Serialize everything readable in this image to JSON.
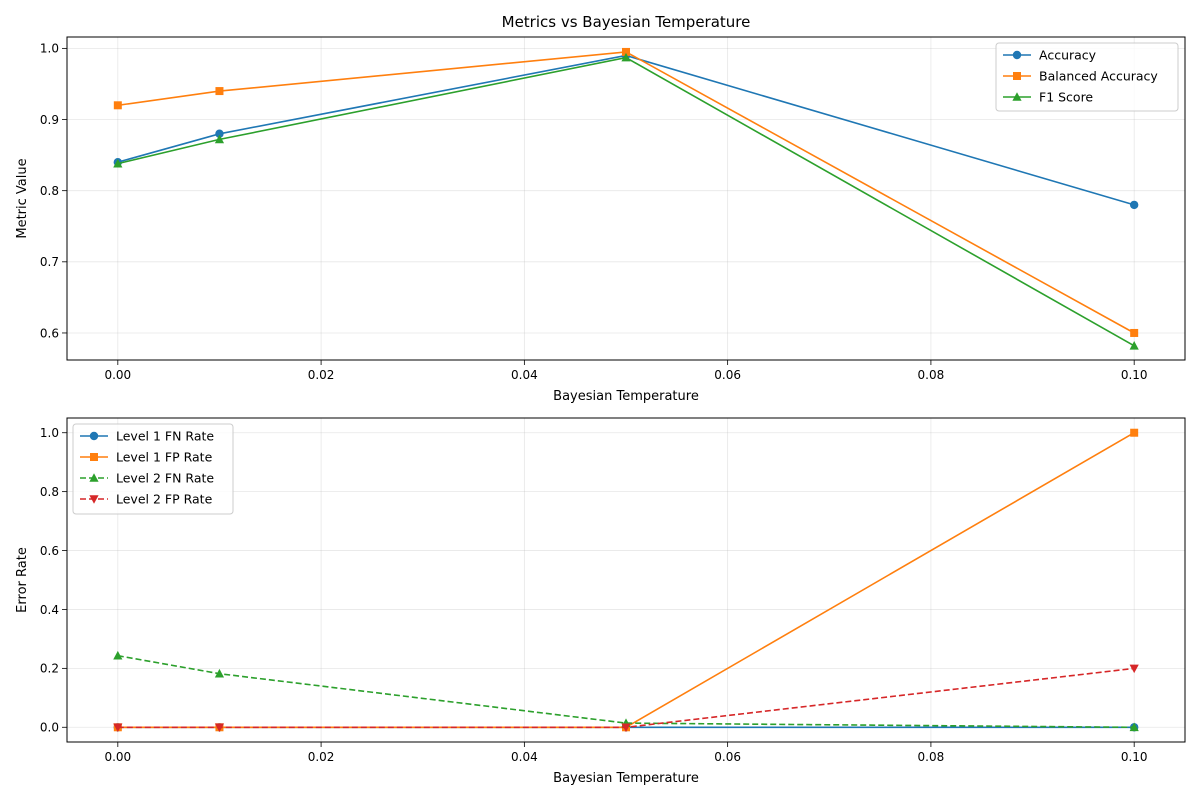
{
  "chart_data": [
    {
      "type": "line",
      "title": "Metrics vs Bayesian Temperature",
      "xlabel": "Bayesian Temperature",
      "ylabel": "Metric Value",
      "x": [
        0.0,
        0.01,
        0.05,
        0.1
      ],
      "xlim": [
        -0.005,
        0.105
      ],
      "ylim": [
        0.562,
        1.016
      ],
      "xticks": [
        0.0,
        0.02,
        0.04,
        0.06,
        0.08,
        0.1
      ],
      "xtick_labels": [
        "0.00",
        "0.02",
        "0.04",
        "0.06",
        "0.08",
        "0.10"
      ],
      "yticks": [
        0.6,
        0.7,
        0.8,
        0.9,
        1.0
      ],
      "ytick_labels": [
        "0.6",
        "0.7",
        "0.8",
        "0.9",
        "1.0"
      ],
      "grid": true,
      "legend_position": "top-right",
      "series": [
        {
          "name": "Accuracy",
          "values": [
            0.84,
            0.88,
            0.99,
            0.78
          ],
          "color": "#1f77b4",
          "marker": "circle",
          "dashed": false
        },
        {
          "name": "Balanced Accuracy",
          "values": [
            0.92,
            0.94,
            0.995,
            0.6
          ],
          "color": "#ff7f0e",
          "marker": "square",
          "dashed": false
        },
        {
          "name": "F1 Score",
          "values": [
            0.838,
            0.872,
            0.987,
            0.582
          ],
          "color": "#2ca02c",
          "marker": "triangle-up",
          "dashed": false
        }
      ]
    },
    {
      "type": "line",
      "title": "",
      "xlabel": "Bayesian Temperature",
      "ylabel": "Error Rate",
      "x": [
        0.0,
        0.01,
        0.05,
        0.1
      ],
      "xlim": [
        -0.005,
        0.105
      ],
      "ylim": [
        -0.05,
        1.05
      ],
      "xticks": [
        0.0,
        0.02,
        0.04,
        0.06,
        0.08,
        0.1
      ],
      "xtick_labels": [
        "0.00",
        "0.02",
        "0.04",
        "0.06",
        "0.08",
        "0.10"
      ],
      "yticks": [
        0.0,
        0.2,
        0.4,
        0.6,
        0.8,
        1.0
      ],
      "ytick_labels": [
        "0.0",
        "0.2",
        "0.4",
        "0.6",
        "0.8",
        "1.0"
      ],
      "grid": true,
      "legend_position": "top-left",
      "series": [
        {
          "name": "Level 1 FN Rate",
          "values": [
            0.0,
            0.0,
            0.0,
            0.0
          ],
          "color": "#1f77b4",
          "marker": "circle",
          "dashed": false
        },
        {
          "name": "Level 1 FP Rate",
          "values": [
            0.0,
            0.0,
            0.0,
            1.0
          ],
          "color": "#ff7f0e",
          "marker": "square",
          "dashed": false
        },
        {
          "name": "Level 2 FN Rate",
          "values": [
            0.243,
            0.182,
            0.014,
            0.0
          ],
          "color": "#2ca02c",
          "marker": "triangle-up",
          "dashed": true
        },
        {
          "name": "Level 2 FP Rate",
          "values": [
            0.0,
            0.0,
            0.0,
            0.2
          ],
          "color": "#d62728",
          "marker": "triangle-down",
          "dashed": true
        }
      ]
    }
  ]
}
